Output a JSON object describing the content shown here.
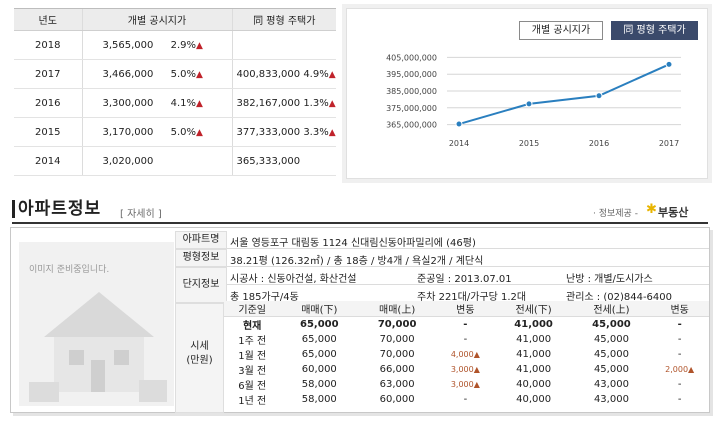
{
  "price_table": {
    "headers": [
      "년도",
      "개별 공시지가",
      "同 평형 주택가"
    ],
    "rows": [
      {
        "year": "2018",
        "official": "3,565,000",
        "official_rate": "2.9%",
        "official_up": true,
        "house": "",
        "house_rate": "",
        "house_up": false
      },
      {
        "year": "2017",
        "official": "3,466,000",
        "official_rate": "5.0%",
        "official_up": true,
        "house": "400,833,000",
        "house_rate": "4.9%",
        "house_up": true
      },
      {
        "year": "2016",
        "official": "3,300,000",
        "official_rate": "4.1%",
        "official_up": true,
        "house": "382,167,000",
        "house_rate": "1.3%",
        "house_up": true
      },
      {
        "year": "2015",
        "official": "3,170,000",
        "official_rate": "5.0%",
        "official_up": true,
        "house": "377,333,000",
        "house_rate": "3.3%",
        "house_up": true
      },
      {
        "year": "2014",
        "official": "3,020,000",
        "official_rate": "",
        "official_up": false,
        "house": "365,333,000",
        "house_rate": "",
        "house_up": false
      }
    ]
  },
  "chart_tabs": {
    "official": "개별 공시지가",
    "same": "同 평형 주택가"
  },
  "chart_data": {
    "type": "line",
    "x": [
      "2014",
      "2015",
      "2016",
      "2017"
    ],
    "series": [
      {
        "values": [
          365333000,
          377333000,
          382167000,
          400833000
        ]
      }
    ],
    "ylim": [
      360000000,
      410000000
    ],
    "yticks": [
      365000000,
      375000000,
      385000000,
      395000000,
      405000000
    ],
    "ytick_labels": [
      "365,000,000",
      "375,000,000",
      "385,000,000",
      "395,000,000",
      "405,000,000"
    ],
    "color": "#2a7fbf"
  },
  "apt": {
    "title": "아파트정보",
    "detail_link": "[ 자세히 ]",
    "source_label": "· 정보제공 -",
    "source_brand": "부동산",
    "photo_caption": "이미지 준비중입니다.",
    "labels": {
      "name": "아파트명",
      "pyeong": "평형정보",
      "complex": "단지정보",
      "price": "시세\n(만원)"
    },
    "name": "서울 영등포구 대림동 1124 신대림신동아파밀리에 (46평)",
    "pyeong": "38.21평 (126.32㎡) / 총 18층 / 방4개 / 욕실2개 / 계단식",
    "builder": "시공사 : 신동아건설, 화산건설",
    "completion": "준공일 : 2013.07.01",
    "heating": "난방 : 개별/도시가스",
    "households": "총 185가구/4동",
    "parking": "주차 221대/가구당 1.2대",
    "office": "관리소 : (02)844-6400"
  },
  "history": {
    "headers": [
      "기준일",
      "매매(下)",
      "매매(上)",
      "변동",
      "전세(下)",
      "전세(上)",
      "변동"
    ],
    "rows": [
      [
        "현재",
        "65,000",
        "70,000",
        "-",
        "41,000",
        "45,000",
        "-"
      ],
      [
        "1주 전",
        "65,000",
        "70,000",
        "-",
        "41,000",
        "45,000",
        "-"
      ],
      [
        "1월 전",
        "65,000",
        "70,000",
        "4,000▲",
        "41,000",
        "45,000",
        "-"
      ],
      [
        "3월 전",
        "60,000",
        "66,000",
        "3,000▲",
        "41,000",
        "45,000",
        "2,000▲"
      ],
      [
        "6월 전",
        "58,000",
        "63,000",
        "3,000▲",
        "40,000",
        "43,000",
        "-"
      ],
      [
        "1년 전",
        "58,000",
        "60,000",
        "-",
        "40,000",
        "43,000",
        "-"
      ]
    ]
  }
}
